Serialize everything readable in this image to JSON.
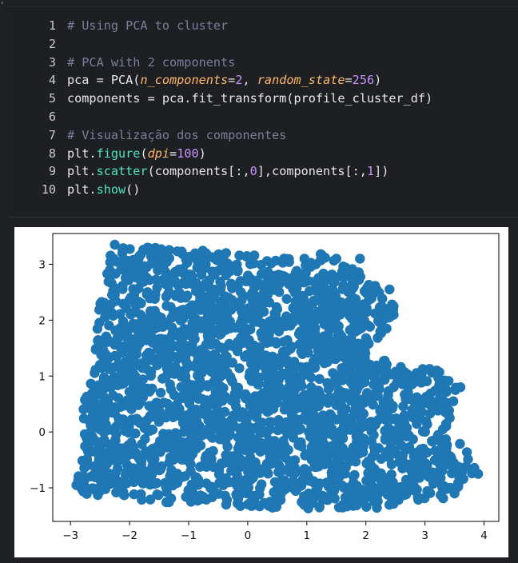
{
  "code_cell": {
    "lines": [
      {
        "number": "1",
        "tokens": [
          {
            "t": "# Using PCA to cluster",
            "c": "comment"
          }
        ]
      },
      {
        "number": "2",
        "tokens": []
      },
      {
        "number": "3",
        "tokens": [
          {
            "t": "# PCA with 2 components",
            "c": "comment"
          }
        ]
      },
      {
        "number": "4",
        "tokens": [
          {
            "t": "pca = PCA(",
            "c": "default"
          },
          {
            "t": "n_components",
            "c": "param"
          },
          {
            "t": "=",
            "c": "default"
          },
          {
            "t": "2",
            "c": "num"
          },
          {
            "t": ", ",
            "c": "default"
          },
          {
            "t": "random_state",
            "c": "param"
          },
          {
            "t": "=",
            "c": "default"
          },
          {
            "t": "256",
            "c": "num"
          },
          {
            "t": ")",
            "c": "default"
          }
        ]
      },
      {
        "number": "5",
        "tokens": [
          {
            "t": "components = pca.fit_transform(profile_cluster_df)",
            "c": "default"
          }
        ]
      },
      {
        "number": "6",
        "tokens": []
      },
      {
        "number": "7",
        "tokens": [
          {
            "t": "# Visualização dos componentes",
            "c": "comment"
          }
        ]
      },
      {
        "number": "8",
        "tokens": [
          {
            "t": "plt.",
            "c": "default"
          },
          {
            "t": "figure",
            "c": "func"
          },
          {
            "t": "(",
            "c": "default"
          },
          {
            "t": "dpi",
            "c": "param"
          },
          {
            "t": "=",
            "c": "default"
          },
          {
            "t": "100",
            "c": "num"
          },
          {
            "t": ")",
            "c": "default"
          }
        ]
      },
      {
        "number": "9",
        "tokens": [
          {
            "t": "plt.",
            "c": "default"
          },
          {
            "t": "scatter",
            "c": "func"
          },
          {
            "t": "(components[:,",
            "c": "default"
          },
          {
            "t": "0",
            "c": "num"
          },
          {
            "t": "],components[:,",
            "c": "default"
          },
          {
            "t": "1",
            "c": "num"
          },
          {
            "t": "])",
            "c": "default"
          }
        ]
      },
      {
        "number": "10",
        "tokens": [
          {
            "t": "plt.",
            "c": "default"
          },
          {
            "t": "show",
            "c": "func"
          },
          {
            "t": "()",
            "c": "default"
          }
        ]
      }
    ]
  },
  "chart_data": {
    "type": "scatter",
    "marker_color": "#1f77b4",
    "xlim": [
      -3.3,
      4.25
    ],
    "ylim": [
      -1.6,
      3.55
    ],
    "x_ticks": [
      -3,
      -2,
      -1,
      0,
      1,
      2,
      3,
      4
    ],
    "y_ticks": [
      -1,
      0,
      1,
      2,
      3
    ],
    "x_tick_labels": [
      "−3",
      "−2",
      "−1",
      "0",
      "1",
      "2",
      "3",
      "4"
    ],
    "y_tick_labels": [
      "−1",
      "0",
      "1",
      "2",
      "3"
    ],
    "point_count_estimate": "thousands",
    "outline_points": [
      {
        "x": -2.3,
        "y": 3.3
      },
      {
        "x": -1.4,
        "y": 3.3
      },
      {
        "x": -0.2,
        "y": 3.2
      },
      {
        "x": 0.8,
        "y": 3.1
      },
      {
        "x": 1.3,
        "y": 3.2
      },
      {
        "x": 1.9,
        "y": 2.9
      },
      {
        "x": 2.3,
        "y": 2.5
      },
      {
        "x": 2.6,
        "y": 2.2
      },
      {
        "x": 2.3,
        "y": 1.8
      },
      {
        "x": 2.0,
        "y": 1.4
      },
      {
        "x": 2.6,
        "y": 1.2
      },
      {
        "x": 3.3,
        "y": 1.1
      },
      {
        "x": 3.6,
        "y": 0.8
      },
      {
        "x": 3.4,
        "y": 0.3
      },
      {
        "x": 3.9,
        "y": -0.75
      },
      {
        "x": 3.5,
        "y": -1.15
      },
      {
        "x": 2.5,
        "y": -1.35
      },
      {
        "x": 1.5,
        "y": -1.4
      },
      {
        "x": 0.0,
        "y": -1.35
      },
      {
        "x": -1.5,
        "y": -1.25
      },
      {
        "x": -2.8,
        "y": -1.1
      },
      {
        "x": -2.9,
        "y": -0.9
      },
      {
        "x": -2.75,
        "y": -0.3
      },
      {
        "x": -2.85,
        "y": 0.4
      },
      {
        "x": -2.6,
        "y": 1.0
      },
      {
        "x": -2.55,
        "y": 2.0
      },
      {
        "x": -2.4,
        "y": 2.8
      },
      {
        "x": -2.3,
        "y": 3.3
      }
    ]
  }
}
